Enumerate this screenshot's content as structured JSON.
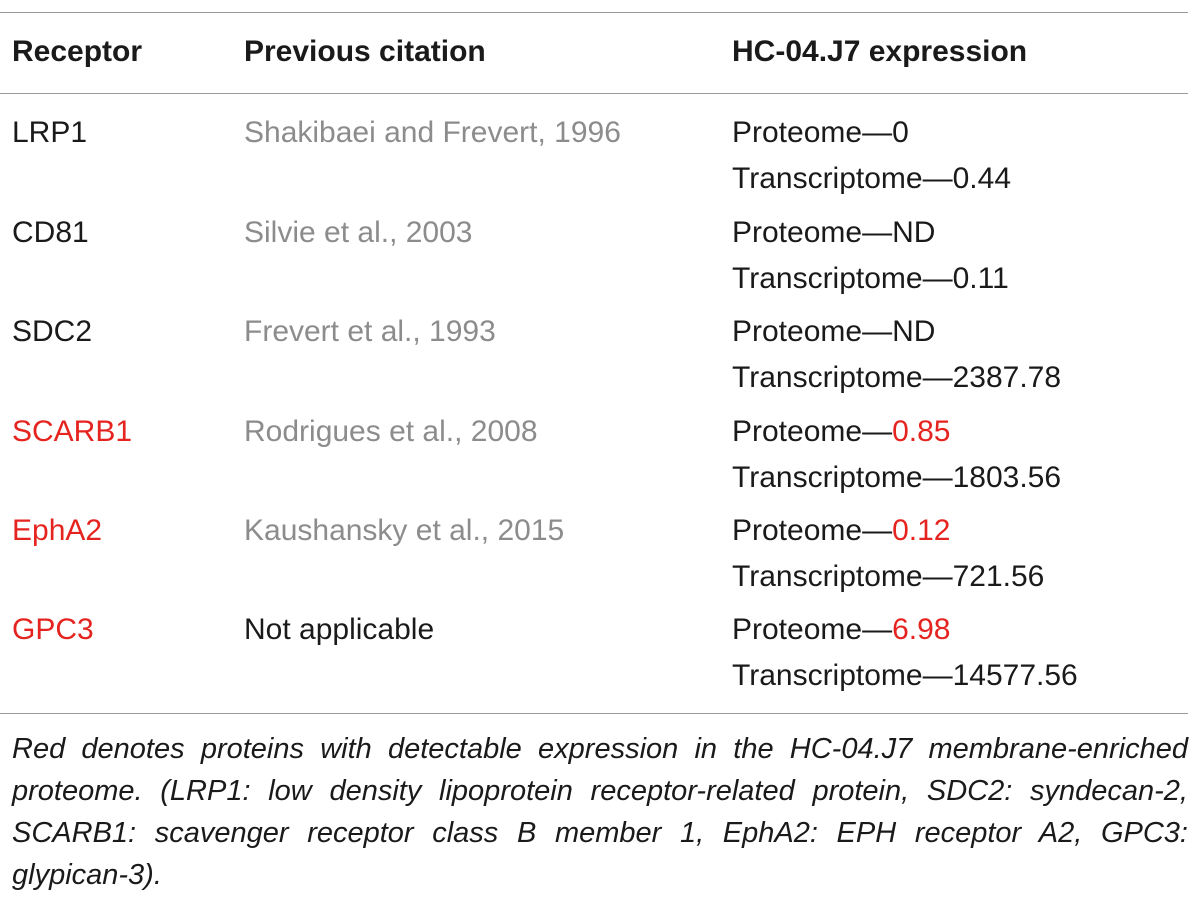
{
  "table": {
    "headers": {
      "receptor": "Receptor",
      "citation": "Previous citation",
      "expression": "HC-04.J7 expression"
    },
    "rows": [
      {
        "receptor": "LRP1",
        "receptor_highlight": false,
        "citation": "Shakibaei and Frevert, 1996",
        "citation_is_link": true,
        "proteome_label": "Proteome—",
        "proteome_value": "0",
        "proteome_highlight": false,
        "transcriptome_label": "Transcriptome—",
        "transcriptome_value": "0.44"
      },
      {
        "receptor": "CD81",
        "receptor_highlight": false,
        "citation": "Silvie et al., 2003",
        "citation_is_link": true,
        "proteome_label": "Proteome—",
        "proteome_value": "ND",
        "proteome_highlight": false,
        "transcriptome_label": "Transcriptome—",
        "transcriptome_value": "0.11"
      },
      {
        "receptor": "SDC2",
        "receptor_highlight": false,
        "citation": "Frevert et al., 1993",
        "citation_is_link": true,
        "proteome_label": "Proteome—",
        "proteome_value": "ND",
        "proteome_highlight": false,
        "transcriptome_label": "Transcriptome—",
        "transcriptome_value": "2387.78"
      },
      {
        "receptor": "SCARB1",
        "receptor_highlight": true,
        "citation": "Rodrigues et al., 2008",
        "citation_is_link": true,
        "proteome_label": "Proteome—",
        "proteome_value": "0.85",
        "proteome_highlight": true,
        "transcriptome_label": "Transcriptome—",
        "transcriptome_value": "1803.56"
      },
      {
        "receptor": "EphA2",
        "receptor_highlight": true,
        "citation": "Kaushansky et al., 2015",
        "citation_is_link": true,
        "proteome_label": "Proteome—",
        "proteome_value": "0.12",
        "proteome_highlight": true,
        "transcriptome_label": "Transcriptome—",
        "transcriptome_value": "721.56"
      },
      {
        "receptor": "GPC3",
        "receptor_highlight": true,
        "citation": "Not applicable",
        "citation_is_link": false,
        "proteome_label": "Proteome—",
        "proteome_value": "6.98",
        "proteome_highlight": true,
        "transcriptome_label": "Transcriptome—",
        "transcriptome_value": "14577.56"
      }
    ]
  },
  "caption": "Red denotes proteins with detectable expression in the HC-04.J7 membrane-enriched proteome. (LRP1: low density lipoprotein receptor-related protein, SDC2: syndecan-2, SCARB1: scavenger receptor class B member 1, EphA2: EPH receptor A2, GPC3: glypican-3).",
  "colors": {
    "highlight": "#e52420",
    "link": "#8c8c8c",
    "text": "#1a1a1a",
    "rule": "#9a9a9a"
  }
}
